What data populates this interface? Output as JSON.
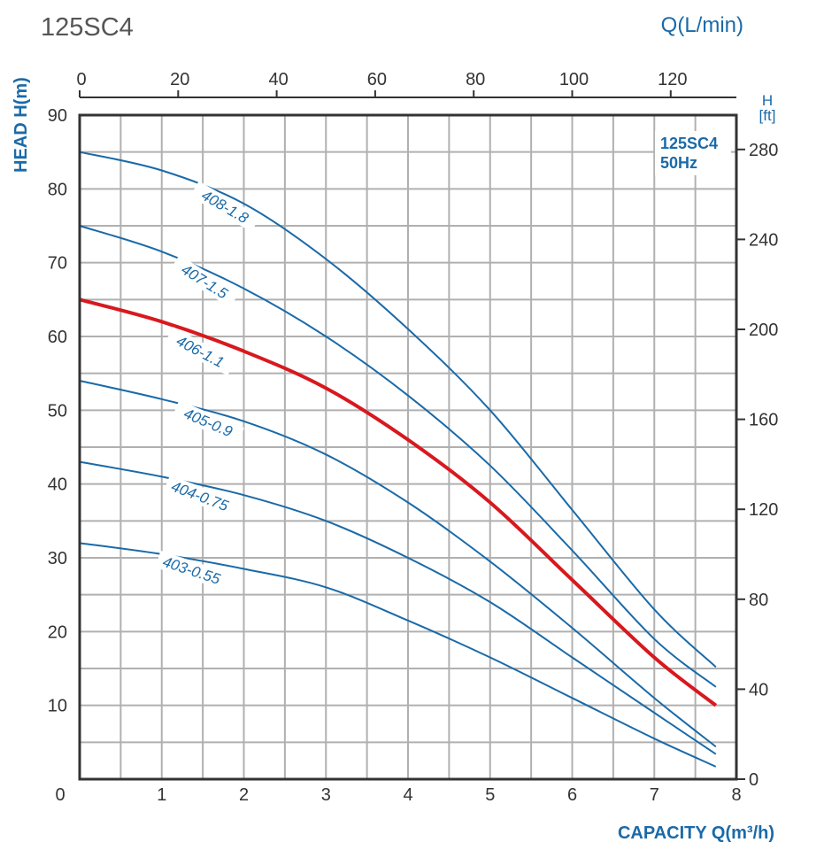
{
  "chart_data": {
    "type": "line",
    "title": "125SC4",
    "xlabel": "CAPACITY Q(m³/h)",
    "ylabel": "HEAD H(m)",
    "x2label": "Q(L/min)",
    "y2label": "H\n[ft]",
    "y2label_lines": [
      "H",
      "[ft]"
    ],
    "annotation": [
      "125SC4",
      "50Hz"
    ],
    "xlim": [
      0,
      8
    ],
    "ylim": [
      0,
      90
    ],
    "x_ticks": [
      "0",
      "1",
      "2",
      "3",
      "4",
      "5",
      "6",
      "7",
      "8"
    ],
    "y_ticks": [
      "10",
      "20",
      "30",
      "40",
      "50",
      "60",
      "70",
      "80",
      "90"
    ],
    "x2_ticks": [
      "0",
      "20",
      "40",
      "60",
      "80",
      "100",
      "120"
    ],
    "y2_ticks": [
      "0",
      "40",
      "80",
      "120",
      "160",
      "200",
      "240",
      "280"
    ],
    "grid": true,
    "colors": {
      "default": "#1a6aa8",
      "highlight": "#d7191f",
      "axis": "#333333",
      "grid": "#b0b0b0",
      "label": "#1a6aa8"
    },
    "x": [
      0,
      1,
      2,
      3,
      4,
      5,
      6,
      7,
      7.75
    ],
    "series": [
      {
        "name": "408-1.8",
        "values": [
          85,
          82.5,
          78,
          70.5,
          61,
          50,
          36.5,
          23,
          15.2
        ],
        "highlight": false
      },
      {
        "name": "407-1.5",
        "values": [
          75,
          71.5,
          66.5,
          60,
          52,
          42.5,
          31,
          19,
          12.5
        ],
        "highlight": false
      },
      {
        "name": "406-1.1",
        "values": [
          65,
          62,
          58,
          53,
          46,
          37.5,
          27,
          16.5,
          10
        ],
        "highlight": true
      },
      {
        "name": "405-0.9",
        "values": [
          54,
          51.5,
          48.5,
          44,
          37.5,
          29.5,
          20.5,
          11,
          4.4
        ],
        "highlight": false
      },
      {
        "name": "404-0.75",
        "values": [
          43,
          41,
          38.5,
          35,
          30,
          24,
          16.5,
          9,
          3.4
        ],
        "highlight": false
      },
      {
        "name": "403-0.55",
        "values": [
          32,
          30.5,
          28.5,
          26,
          21.5,
          16.5,
          11,
          5.5,
          1.7
        ],
        "highlight": false
      }
    ]
  }
}
